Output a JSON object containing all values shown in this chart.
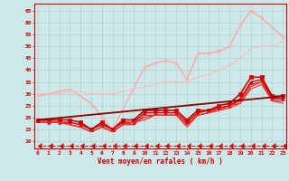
{
  "background_color": "#cce8e8",
  "grid_color": "#aacccc",
  "xlabel": "Vent moyen/en rafales ( km/h )",
  "x_ticks": [
    0,
    1,
    2,
    3,
    4,
    5,
    6,
    7,
    8,
    9,
    10,
    11,
    12,
    13,
    14,
    15,
    16,
    17,
    18,
    19,
    20,
    21,
    22,
    23
  ],
  "y_ticks": [
    10,
    15,
    20,
    25,
    30,
    35,
    40,
    45,
    50,
    55,
    60,
    65
  ],
  "ylim": [
    7,
    68
  ],
  "xlim": [
    -0.3,
    23.3
  ],
  "series": [
    {
      "x": [
        0,
        3,
        5,
        7
      ],
      "y": [
        29,
        32,
        26,
        15
      ],
      "color": "#ffaaaa",
      "lw": 0.9,
      "marker": null,
      "linestyle": "-"
    },
    {
      "x": [
        10,
        11,
        12,
        13,
        14,
        15,
        16,
        17,
        18,
        19,
        20,
        21,
        23
      ],
      "y": [
        41,
        43,
        44,
        43,
        36,
        47,
        47,
        48,
        50,
        59,
        65,
        62,
        54
      ],
      "color": "#ffaaaa",
      "lw": 0.9,
      "marker": "x",
      "markersize": 3,
      "linestyle": "-"
    },
    {
      "x": [
        0,
        3,
        5,
        7,
        10,
        11,
        12,
        13,
        14,
        15,
        16,
        17,
        18,
        19,
        20,
        21,
        23
      ],
      "y": [
        29,
        32,
        26,
        15,
        41,
        43,
        44,
        43,
        36,
        47,
        47,
        48,
        50,
        59,
        65,
        62,
        54
      ],
      "color": "#ffaaaa",
      "lw": 0.9,
      "marker": null,
      "linestyle": "-"
    },
    {
      "x": [
        0,
        1,
        2,
        3,
        4,
        5,
        6,
        7,
        8,
        9,
        10,
        11,
        12,
        13,
        14,
        15,
        16,
        17,
        18,
        19,
        20,
        21,
        22,
        23
      ],
      "y": [
        30,
        30,
        30,
        31,
        31,
        30,
        30,
        30,
        31,
        32,
        33,
        34,
        35,
        35,
        35,
        37,
        38,
        40,
        42,
        45,
        49,
        50,
        50,
        52
      ],
      "color": "#ffbbbb",
      "lw": 0.9,
      "marker": null,
      "linestyle": "-"
    },
    {
      "x": [
        0,
        1,
        2,
        3,
        4,
        5,
        6,
        7,
        8,
        9,
        10,
        11,
        12,
        13,
        14,
        15,
        16,
        17,
        18,
        19,
        20,
        21,
        22,
        23
      ],
      "y": [
        19,
        19,
        19,
        19,
        18,
        15,
        18,
        15,
        19,
        19,
        23,
        23,
        23,
        23,
        19,
        23,
        23,
        25,
        26,
        30,
        37,
        37,
        29,
        29
      ],
      "color": "#cc0000",
      "lw": 1.2,
      "marker": "s",
      "markersize": 2.5,
      "linestyle": "-"
    },
    {
      "x": [
        0,
        1,
        2,
        3,
        4,
        5,
        6,
        7,
        8,
        9,
        10,
        11,
        12,
        13,
        14,
        15,
        16,
        17,
        18,
        19,
        20,
        21,
        22,
        23
      ],
      "y": [
        19,
        18,
        18,
        18,
        17,
        15,
        17,
        15,
        18,
        18,
        22,
        22,
        22,
        22,
        18,
        22,
        23,
        24,
        25,
        28,
        35,
        36,
        28,
        28
      ],
      "color": "#cc0000",
      "lw": 1.0,
      "marker": "^",
      "markersize": 2.5,
      "linestyle": "-"
    },
    {
      "x": [
        0,
        1,
        2,
        3,
        4,
        5,
        6,
        7,
        8,
        9,
        10,
        11,
        12,
        13,
        14,
        15,
        16,
        17,
        18,
        19,
        20,
        21,
        22,
        23
      ],
      "y": [
        18,
        18,
        18,
        17,
        16,
        14,
        16,
        14,
        17,
        17,
        21,
        21,
        21,
        21,
        17,
        21,
        22,
        24,
        25,
        27,
        34,
        35,
        28,
        28
      ],
      "color": "#dd1111",
      "lw": 0.8,
      "marker": null,
      "linestyle": "-"
    },
    {
      "x": [
        0,
        1,
        2,
        3,
        4,
        5,
        6,
        7,
        8,
        9,
        10,
        11,
        12,
        13,
        14,
        15,
        16,
        17,
        18,
        19,
        20,
        21,
        22,
        23
      ],
      "y": [
        19,
        18,
        18,
        17,
        16,
        14,
        16,
        14,
        17,
        18,
        20,
        21,
        21,
        21,
        17,
        21,
        22,
        23,
        25,
        26,
        33,
        35,
        27,
        27
      ],
      "color": "#ee2222",
      "lw": 0.8,
      "marker": null,
      "linestyle": "-"
    },
    {
      "x": [
        0,
        1,
        2,
        3,
        4,
        5,
        6,
        7,
        8,
        9,
        10,
        11,
        12,
        13,
        14,
        15,
        16,
        17,
        18,
        19,
        20,
        21,
        22,
        23
      ],
      "y": [
        19,
        18,
        18,
        17,
        16,
        14,
        16,
        14,
        17,
        18,
        19,
        21,
        21,
        21,
        16,
        21,
        22,
        23,
        24,
        26,
        32,
        34,
        27,
        26
      ],
      "color": "#ff3333",
      "lw": 0.8,
      "marker": null,
      "linestyle": "-"
    },
    {
      "x": [
        0,
        23
      ],
      "y": [
        19,
        29
      ],
      "color": "#880000",
      "lw": 1.3,
      "marker": null,
      "linestyle": "-"
    },
    {
      "x": [
        0,
        1,
        2,
        3,
        4,
        5,
        6,
        7,
        8,
        9,
        10,
        11,
        12,
        13,
        14,
        15,
        16,
        17,
        18,
        19,
        20,
        21,
        22,
        23
      ],
      "y": [
        8,
        8,
        8,
        8,
        8,
        8,
        8,
        8,
        8,
        8,
        8,
        8,
        8,
        8,
        8,
        8,
        8,
        8,
        8,
        8,
        8,
        8,
        8,
        8
      ],
      "color": "#cc0000",
      "lw": 0.7,
      "marker": 4,
      "markersize": 4,
      "linestyle": "--"
    }
  ]
}
